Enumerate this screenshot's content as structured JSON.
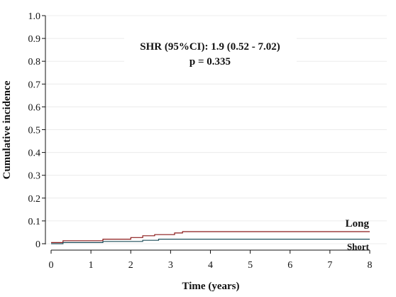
{
  "chart_data": {
    "type": "line",
    "xlabel": "Time (years)",
    "ylabel": "Cumulative incidence",
    "xlim": [
      0,
      8
    ],
    "ylim": [
      0,
      1.0
    ],
    "x_ticks": [
      "0",
      "1",
      "2",
      "3",
      "4",
      "5",
      "6",
      "7",
      "8"
    ],
    "y_ticks": [
      "0",
      "0.1",
      "0.2",
      "0.3",
      "0.4",
      "0.5",
      "0.6",
      "0.7",
      "0.8",
      "0.9",
      "1.0"
    ],
    "grid": "horizontal",
    "annotations": [
      "SHR (95%CI): 1.9 (0.52 - 7.02)",
      "p = 0.335"
    ],
    "series": [
      {
        "name": "Long",
        "color": "#8b1a1a",
        "step": true,
        "x": [
          0,
          0.3,
          1.3,
          2.0,
          2.3,
          2.6,
          3.1,
          3.3,
          8.0
        ],
        "y": [
          0.005,
          0.013,
          0.02,
          0.027,
          0.035,
          0.04,
          0.047,
          0.053,
          0.053
        ]
      },
      {
        "name": "Short",
        "color": "#1f4e5a",
        "step": true,
        "x": [
          0,
          0.3,
          1.3,
          2.3,
          2.7,
          8.0
        ],
        "y": [
          0,
          0.005,
          0.01,
          0.015,
          0.02,
          0.02
        ]
      }
    ]
  }
}
